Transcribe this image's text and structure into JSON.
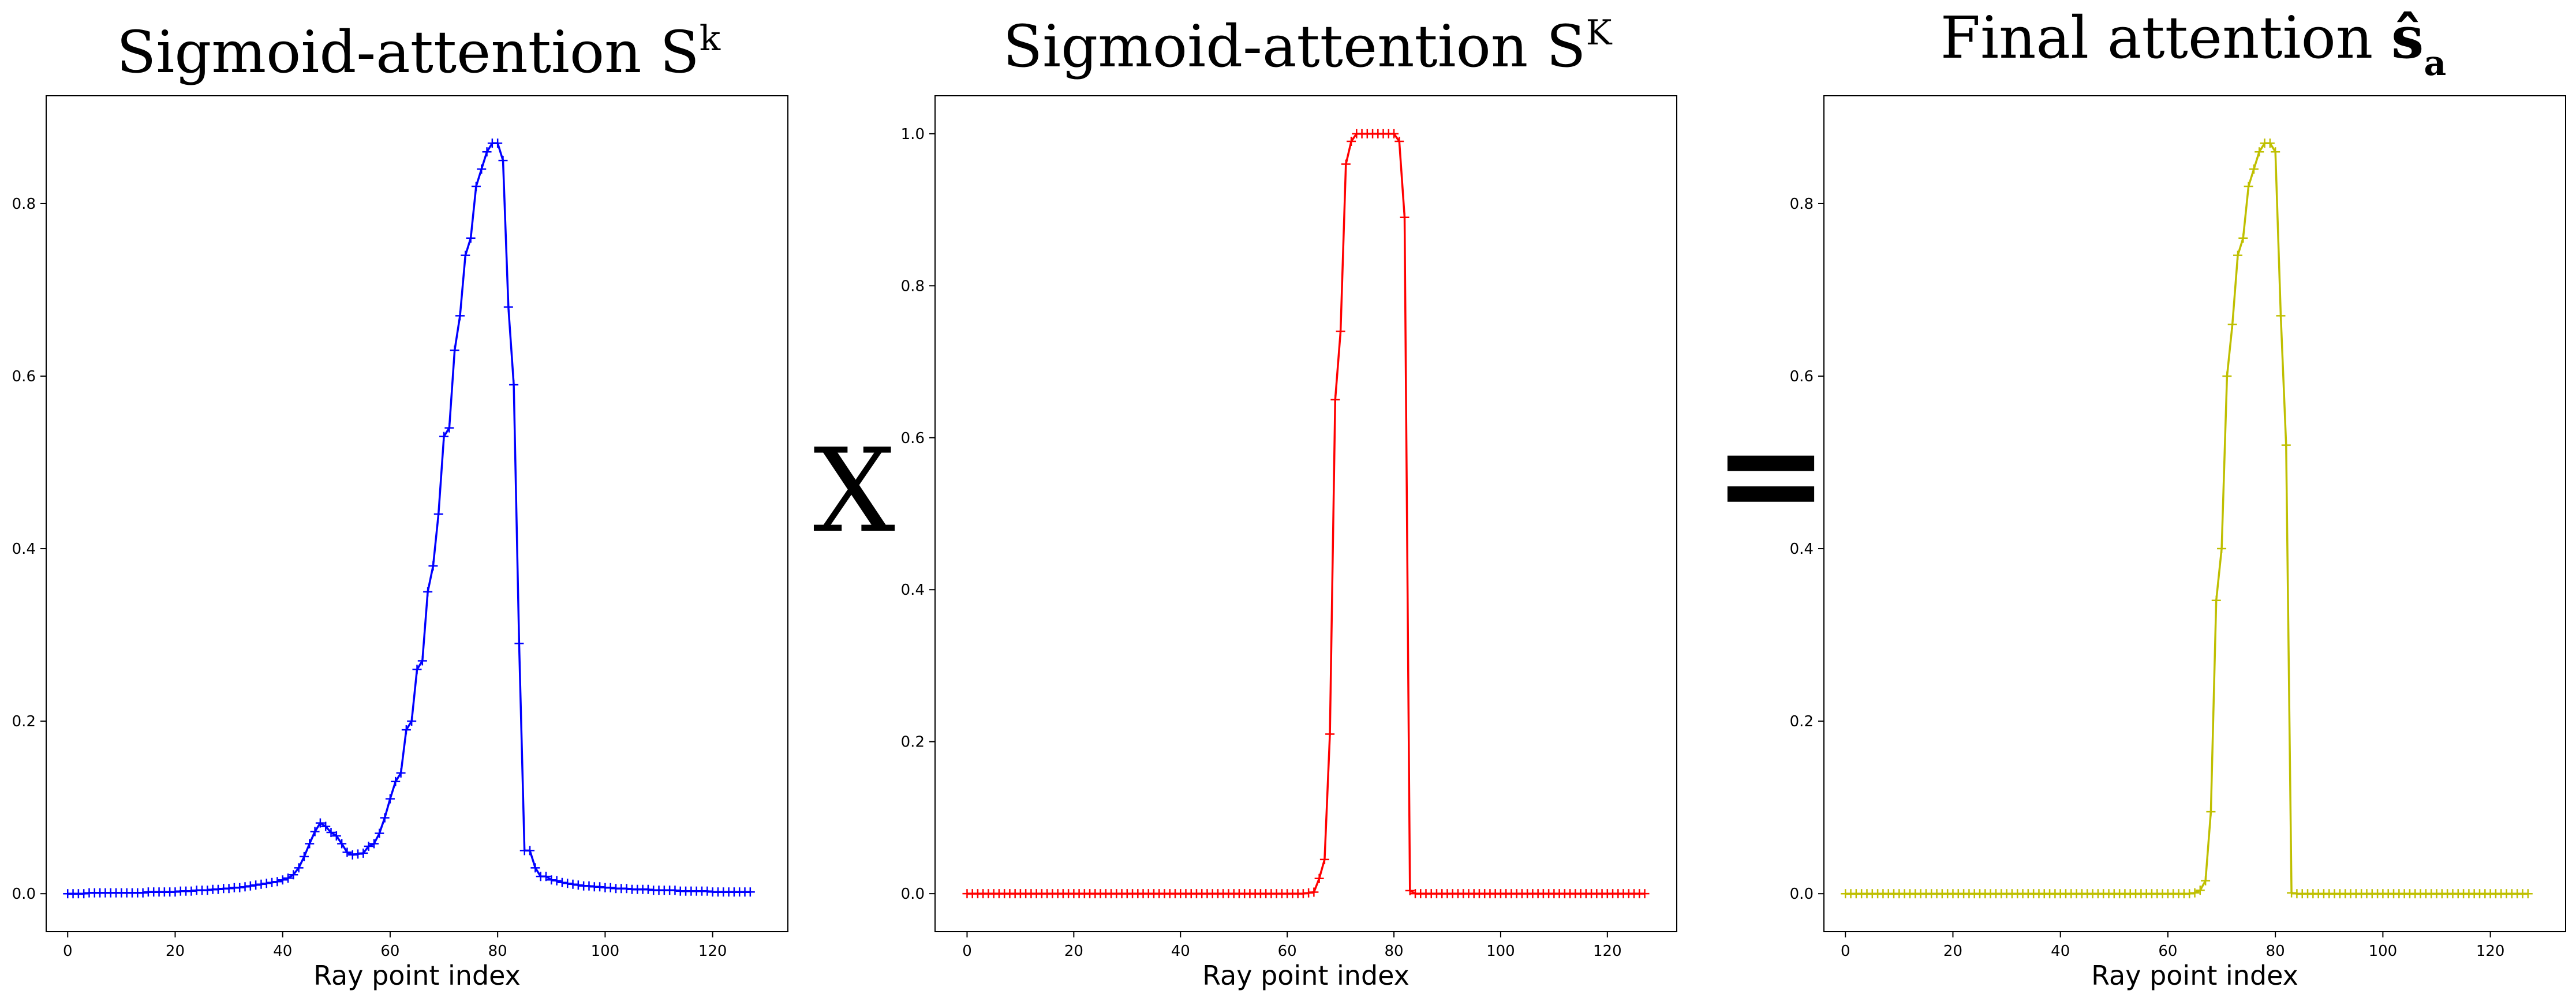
{
  "operators": {
    "multiply": "X",
    "equals": "="
  },
  "chart_data": [
    {
      "type": "line",
      "title": "Sigmoid-attention S",
      "title_superscript": "k",
      "xlabel": "Ray point index",
      "ylabel": "",
      "xlim": [
        -4,
        134
      ],
      "ylim": [
        -0.044,
        0.925
      ],
      "xticks": [
        0,
        20,
        40,
        60,
        80,
        100,
        120
      ],
      "yticks": [
        0.0,
        0.2,
        0.4,
        0.6,
        0.8
      ],
      "ytick_labels": [
        "0.0",
        "0.2",
        "0.4",
        "0.6",
        "0.8"
      ],
      "marker": "+",
      "grid": false,
      "series": [
        {
          "color": "#0000ff",
          "x": [
            0,
            1,
            2,
            3,
            4,
            5,
            6,
            7,
            8,
            9,
            10,
            11,
            12,
            13,
            14,
            15,
            16,
            17,
            18,
            19,
            20,
            21,
            22,
            23,
            24,
            25,
            26,
            27,
            28,
            29,
            30,
            31,
            32,
            33,
            34,
            35,
            36,
            37,
            38,
            39,
            40,
            41,
            42,
            43,
            44,
            45,
            46,
            47,
            48,
            49,
            50,
            51,
            52,
            53,
            54,
            55,
            56,
            57,
            58,
            59,
            60,
            61,
            62,
            63,
            64,
            65,
            66,
            67,
            68,
            69,
            70,
            71,
            72,
            73,
            74,
            75,
            76,
            77,
            78,
            79,
            80,
            81,
            82,
            83,
            84,
            85,
            86,
            87,
            88,
            89,
            90,
            91,
            92,
            93,
            94,
            95,
            96,
            97,
            98,
            99,
            100,
            101,
            102,
            103,
            104,
            105,
            106,
            107,
            108,
            109,
            110,
            111,
            112,
            113,
            114,
            115,
            116,
            117,
            118,
            119,
            120,
            121,
            122,
            123,
            124,
            125,
            126,
            127
          ],
          "y": [
            0.0,
            0.0,
            0.0,
            0.0,
            0.001,
            0.001,
            0.001,
            0.001,
            0.001,
            0.001,
            0.001,
            0.001,
            0.001,
            0.001,
            0.001,
            0.002,
            0.002,
            0.002,
            0.002,
            0.002,
            0.002,
            0.003,
            0.003,
            0.003,
            0.004,
            0.004,
            0.004,
            0.005,
            0.005,
            0.006,
            0.006,
            0.007,
            0.007,
            0.008,
            0.009,
            0.01,
            0.011,
            0.012,
            0.013,
            0.014,
            0.016,
            0.018,
            0.022,
            0.03,
            0.043,
            0.058,
            0.072,
            0.082,
            0.078,
            0.071,
            0.067,
            0.058,
            0.048,
            0.045,
            0.046,
            0.047,
            0.055,
            0.058,
            0.07,
            0.088,
            0.11,
            0.13,
            0.14,
            0.19,
            0.2,
            0.26,
            0.27,
            0.35,
            0.38,
            0.44,
            0.53,
            0.54,
            0.63,
            0.67,
            0.74,
            0.76,
            0.82,
            0.84,
            0.86,
            0.87,
            0.87,
            0.85,
            0.68,
            0.59,
            0.29,
            0.05,
            0.05,
            0.03,
            0.02,
            0.02,
            0.016,
            0.015,
            0.013,
            0.012,
            0.011,
            0.01,
            0.009,
            0.009,
            0.008,
            0.008,
            0.007,
            0.007,
            0.006,
            0.006,
            0.006,
            0.005,
            0.005,
            0.005,
            0.005,
            0.004,
            0.004,
            0.004,
            0.004,
            0.004,
            0.003,
            0.003,
            0.003,
            0.003,
            0.003,
            0.003,
            0.002,
            0.002,
            0.002,
            0.002,
            0.002,
            0.002,
            0.002,
            0.002
          ]
        }
      ]
    },
    {
      "type": "line",
      "title": "Sigmoid-attention S",
      "title_superscript": "K",
      "xlabel": "Ray point index",
      "ylabel": "",
      "xlim": [
        -6,
        133
      ],
      "ylim": [
        -0.05,
        1.05
      ],
      "xticks": [
        0,
        20,
        40,
        60,
        80,
        100,
        120
      ],
      "yticks": [
        0.0,
        0.2,
        0.4,
        0.6,
        0.8,
        1.0
      ],
      "ytick_labels": [
        "0.0",
        "0.2",
        "0.4",
        "0.6",
        "0.8",
        "1.0"
      ],
      "marker": "+",
      "grid": false,
      "series": [
        {
          "color": "#ff0000",
          "x": [
            0,
            1,
            2,
            3,
            4,
            5,
            6,
            7,
            8,
            9,
            10,
            11,
            12,
            13,
            14,
            15,
            16,
            17,
            18,
            19,
            20,
            21,
            22,
            23,
            24,
            25,
            26,
            27,
            28,
            29,
            30,
            31,
            32,
            33,
            34,
            35,
            36,
            37,
            38,
            39,
            40,
            41,
            42,
            43,
            44,
            45,
            46,
            47,
            48,
            49,
            50,
            51,
            52,
            53,
            54,
            55,
            56,
            57,
            58,
            59,
            60,
            61,
            62,
            63,
            64,
            65,
            66,
            67,
            68,
            69,
            70,
            71,
            72,
            73,
            74,
            75,
            76,
            77,
            78,
            79,
            80,
            81,
            82,
            83,
            84,
            85,
            86,
            87,
            88,
            89,
            90,
            91,
            92,
            93,
            94,
            95,
            96,
            97,
            98,
            99,
            100,
            101,
            102,
            103,
            104,
            105,
            106,
            107,
            108,
            109,
            110,
            111,
            112,
            113,
            114,
            115,
            116,
            117,
            118,
            119,
            120,
            121,
            122,
            123,
            124,
            125,
            126,
            127
          ],
          "y": [
            0,
            0,
            0,
            0,
            0,
            0,
            0,
            0,
            0,
            0,
            0,
            0,
            0,
            0,
            0,
            0,
            0,
            0,
            0,
            0,
            0,
            0,
            0,
            0,
            0,
            0,
            0,
            0,
            0,
            0,
            0,
            0,
            0,
            0,
            0,
            0,
            0,
            0,
            0,
            0,
            0,
            0,
            0,
            0,
            0,
            0,
            0,
            0,
            0,
            0,
            0,
            0,
            0,
            0,
            0,
            0,
            0,
            0,
            0,
            0,
            0,
            0,
            0,
            0,
            0.001,
            0.002,
            0.02,
            0.045,
            0.21,
            0.65,
            0.74,
            0.96,
            0.99,
            1.0,
            1.0,
            1.0,
            1.0,
            1.0,
            1.0,
            1.0,
            1.0,
            0.99,
            0.89,
            0.004,
            0,
            0,
            0,
            0,
            0,
            0,
            0,
            0,
            0,
            0,
            0,
            0,
            0,
            0,
            0,
            0,
            0,
            0,
            0,
            0,
            0,
            0,
            0,
            0,
            0,
            0,
            0,
            0,
            0,
            0,
            0,
            0,
            0,
            0,
            0,
            0,
            0,
            0,
            0,
            0,
            0,
            0,
            0,
            0
          ]
        }
      ]
    },
    {
      "type": "line",
      "title": "Final attention ",
      "title_symbol": "ŝ",
      "title_subscript": "a",
      "xlabel": "Ray point index",
      "ylabel": "",
      "xlim": [
        -4,
        134
      ],
      "ylim": [
        -0.044,
        0.925
      ],
      "xticks": [
        0,
        20,
        40,
        60,
        80,
        100,
        120
      ],
      "yticks": [
        0.0,
        0.2,
        0.4,
        0.6,
        0.8
      ],
      "ytick_labels": [
        "0.0",
        "0.2",
        "0.4",
        "0.6",
        "0.8"
      ],
      "marker": "+",
      "grid": false,
      "series": [
        {
          "color": "#bfbf00",
          "x": [
            0,
            1,
            2,
            3,
            4,
            5,
            6,
            7,
            8,
            9,
            10,
            11,
            12,
            13,
            14,
            15,
            16,
            17,
            18,
            19,
            20,
            21,
            22,
            23,
            24,
            25,
            26,
            27,
            28,
            29,
            30,
            31,
            32,
            33,
            34,
            35,
            36,
            37,
            38,
            39,
            40,
            41,
            42,
            43,
            44,
            45,
            46,
            47,
            48,
            49,
            50,
            51,
            52,
            53,
            54,
            55,
            56,
            57,
            58,
            59,
            60,
            61,
            62,
            63,
            64,
            65,
            66,
            67,
            68,
            69,
            70,
            71,
            72,
            73,
            74,
            75,
            76,
            77,
            78,
            79,
            80,
            81,
            82,
            83,
            84,
            85,
            86,
            87,
            88,
            89,
            90,
            91,
            92,
            93,
            94,
            95,
            96,
            97,
            98,
            99,
            100,
            101,
            102,
            103,
            104,
            105,
            106,
            107,
            108,
            109,
            110,
            111,
            112,
            113,
            114,
            115,
            116,
            117,
            118,
            119,
            120,
            121,
            122,
            123,
            124,
            125,
            126,
            127
          ],
          "y": [
            0,
            0,
            0,
            0,
            0,
            0,
            0,
            0,
            0,
            0,
            0,
            0,
            0,
            0,
            0,
            0,
            0,
            0,
            0,
            0,
            0,
            0,
            0,
            0,
            0,
            0,
            0,
            0,
            0,
            0,
            0,
            0,
            0,
            0,
            0,
            0,
            0,
            0,
            0,
            0,
            0,
            0,
            0,
            0,
            0,
            0,
            0,
            0,
            0,
            0,
            0,
            0,
            0,
            0,
            0,
            0,
            0,
            0,
            0,
            0,
            0,
            0,
            0,
            0,
            0,
            0.001,
            0.004,
            0.015,
            0.095,
            0.34,
            0.4,
            0.6,
            0.66,
            0.74,
            0.76,
            0.82,
            0.84,
            0.86,
            0.87,
            0.87,
            0.86,
            0.67,
            0.52,
            0.001,
            0,
            0,
            0,
            0,
            0,
            0,
            0,
            0,
            0,
            0,
            0,
            0,
            0,
            0,
            0,
            0,
            0,
            0,
            0,
            0,
            0,
            0,
            0,
            0,
            0,
            0,
            0,
            0,
            0,
            0,
            0,
            0,
            0,
            0,
            0,
            0,
            0,
            0,
            0,
            0,
            0,
            0,
            0,
            0
          ]
        }
      ]
    }
  ]
}
